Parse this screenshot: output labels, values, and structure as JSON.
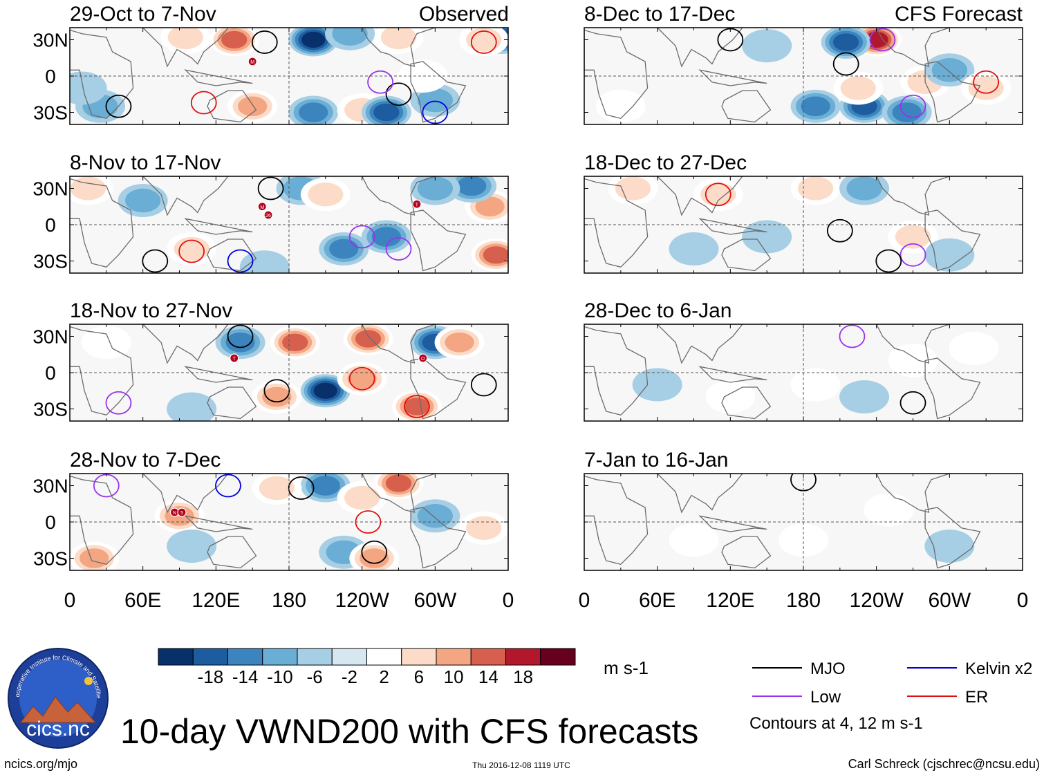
{
  "chart_data": {
    "type": "heatmap",
    "title": "10-day VWND200 with CFS forecasts",
    "variable": "VWND200",
    "units": "m s-1",
    "x_ticks": [
      "0",
      "60E",
      "120E",
      "180",
      "120W",
      "60W",
      "0"
    ],
    "y_ticks": [
      "30N",
      "0",
      "30S"
    ],
    "xlim": [
      0,
      360
    ],
    "ylim": [
      -40,
      40
    ],
    "column_labels": {
      "observed": "Observed",
      "forecast": "CFS Forecast"
    },
    "panels": [
      {
        "column": "observed",
        "period": "29-Oct to 7-Nov",
        "centers": [
          {
            "lon": 355,
            "lat": 32,
            "v": -16
          },
          {
            "lon": 200,
            "lat": 30,
            "v": -20
          },
          {
            "lon": 135,
            "lat": 30,
            "v": 18
          },
          {
            "lon": 270,
            "lat": 32,
            "v": 10
          },
          {
            "lon": 230,
            "lat": 35,
            "v": -10
          },
          {
            "lon": 200,
            "lat": -30,
            "v": -12
          },
          {
            "lon": 240,
            "lat": -28,
            "v": 10
          },
          {
            "lon": 260,
            "lat": -30,
            "v": -18
          },
          {
            "lon": 300,
            "lat": -20,
            "v": -10
          },
          {
            "lon": 340,
            "lat": 30,
            "v": 8
          },
          {
            "lon": 25,
            "lat": -25,
            "v": -10
          },
          {
            "lon": 150,
            "lat": -25,
            "v": 12
          },
          {
            "lon": 95,
            "lat": 32,
            "v": 10
          },
          {
            "lon": 10,
            "lat": -10,
            "v": -6
          },
          {
            "lon": 290,
            "lat": 0,
            "v": 6
          }
        ],
        "contours": [
          {
            "type": "mjo",
            "lon": 40,
            "lat": -25
          },
          {
            "type": "mjo",
            "lon": 160,
            "lat": 28
          },
          {
            "type": "mjo",
            "lon": 270,
            "lat": -15
          },
          {
            "type": "er",
            "lon": 110,
            "lat": -22
          },
          {
            "type": "er",
            "lon": 340,
            "lat": 28
          },
          {
            "type": "low",
            "lon": 255,
            "lat": -5
          },
          {
            "type": "kelvin",
            "lon": 300,
            "lat": -30
          }
        ],
        "markers": [
          {
            "lon": 150,
            "lat": 12,
            "label": "M"
          }
        ]
      },
      {
        "column": "observed",
        "period": "8-Nov to 17-Nov",
        "centers": [
          {
            "lon": 350,
            "lat": -25,
            "v": 16
          },
          {
            "lon": 345,
            "lat": 15,
            "v": 14
          },
          {
            "lon": 330,
            "lat": 32,
            "v": -12
          },
          {
            "lon": 225,
            "lat": -20,
            "v": -14
          },
          {
            "lon": 260,
            "lat": -10,
            "v": -12
          },
          {
            "lon": 300,
            "lat": 30,
            "v": -8
          },
          {
            "lon": 100,
            "lat": -20,
            "v": 10
          },
          {
            "lon": 60,
            "lat": 20,
            "v": -10
          },
          {
            "lon": 15,
            "lat": 30,
            "v": 10
          },
          {
            "lon": 190,
            "lat": 30,
            "v": -8
          },
          {
            "lon": 160,
            "lat": -35,
            "v": -6
          },
          {
            "lon": 210,
            "lat": 25,
            "v": 8
          }
        ],
        "contours": [
          {
            "type": "mjo",
            "lon": 165,
            "lat": 30
          },
          {
            "type": "mjo",
            "lon": 70,
            "lat": -30
          },
          {
            "type": "low",
            "lon": 270,
            "lat": -20
          },
          {
            "type": "er",
            "lon": 100,
            "lat": -22
          },
          {
            "type": "low",
            "lon": 240,
            "lat": -10
          },
          {
            "type": "kelvin",
            "lon": 140,
            "lat": -30
          }
        ],
        "markers": [
          {
            "lon": 158,
            "lat": 15,
            "label": "M"
          },
          {
            "lon": 163,
            "lat": 8,
            "label": "26"
          },
          {
            "lon": 285,
            "lat": 17,
            "label": "T"
          }
        ]
      },
      {
        "column": "observed",
        "period": "18-Nov to 27-Nov",
        "centers": [
          {
            "lon": 185,
            "lat": 25,
            "v": 18
          },
          {
            "lon": 170,
            "lat": -20,
            "v": 14
          },
          {
            "lon": 210,
            "lat": -15,
            "v": -20
          },
          {
            "lon": 240,
            "lat": -5,
            "v": 12
          },
          {
            "lon": 245,
            "lat": 28,
            "v": 16
          },
          {
            "lon": 285,
            "lat": -28,
            "v": 16
          },
          {
            "lon": 300,
            "lat": 25,
            "v": -16
          },
          {
            "lon": 320,
            "lat": 25,
            "v": 14
          },
          {
            "lon": 140,
            "lat": 25,
            "v": -12
          },
          {
            "lon": 100,
            "lat": -30,
            "v": -6
          },
          {
            "lon": 30,
            "lat": 25,
            "v": 6
          }
        ],
        "contours": [
          {
            "type": "mjo",
            "lon": 170,
            "lat": -15
          },
          {
            "type": "mjo",
            "lon": 140,
            "lat": 30
          },
          {
            "type": "er",
            "lon": 285,
            "lat": -28
          },
          {
            "type": "er",
            "lon": 240,
            "lat": -5
          },
          {
            "type": "low",
            "lon": 40,
            "lat": -25
          },
          {
            "type": "mjo",
            "lon": 340,
            "lat": -10
          }
        ],
        "markers": [
          {
            "lon": 135,
            "lat": 12,
            "label": "T"
          },
          {
            "lon": 290,
            "lat": 12,
            "label": "O"
          }
        ]
      },
      {
        "column": "observed",
        "period": "28-Nov to 7-Dec",
        "centers": [
          {
            "lon": 270,
            "lat": 32,
            "v": 18
          },
          {
            "lon": 210,
            "lat": 30,
            "v": -12
          },
          {
            "lon": 170,
            "lat": 28,
            "v": 10
          },
          {
            "lon": 240,
            "lat": 20,
            "v": 10
          },
          {
            "lon": 225,
            "lat": -25,
            "v": -10
          },
          {
            "lon": 250,
            "lat": -30,
            "v": 14
          },
          {
            "lon": 300,
            "lat": 5,
            "v": -8
          },
          {
            "lon": 90,
            "lat": 5,
            "v": 12
          },
          {
            "lon": 20,
            "lat": -30,
            "v": 12
          },
          {
            "lon": 100,
            "lat": -20,
            "v": -6
          },
          {
            "lon": 340,
            "lat": -5,
            "v": 10
          }
        ],
        "contours": [
          {
            "type": "mjo",
            "lon": 190,
            "lat": 28
          },
          {
            "type": "mjo",
            "lon": 250,
            "lat": -25
          },
          {
            "type": "er",
            "lon": 245,
            "lat": 0
          },
          {
            "type": "low",
            "lon": 30,
            "lat": 30
          },
          {
            "type": "kelvin",
            "lon": 130,
            "lat": 30
          }
        ],
        "markers": [
          {
            "lon": 86,
            "lat": 8,
            "label": "N"
          },
          {
            "lon": 92,
            "lat": 8,
            "label": "5"
          }
        ]
      },
      {
        "column": "forecast",
        "period": "8-Dec to 17-Dec",
        "centers": [
          {
            "lon": 240,
            "lat": 30,
            "v": 20
          },
          {
            "lon": 215,
            "lat": 28,
            "v": -18
          },
          {
            "lon": 190,
            "lat": -25,
            "v": -12
          },
          {
            "lon": 230,
            "lat": -25,
            "v": -16
          },
          {
            "lon": 265,
            "lat": -30,
            "v": -14
          },
          {
            "lon": 225,
            "lat": -10,
            "v": 10
          },
          {
            "lon": 280,
            "lat": -5,
            "v": 8
          },
          {
            "lon": 300,
            "lat": 5,
            "v": -8
          },
          {
            "lon": 330,
            "lat": -10,
            "v": 8
          },
          {
            "lon": 30,
            "lat": -25,
            "v": 6
          },
          {
            "lon": 150,
            "lat": 25,
            "v": -6
          }
        ],
        "contours": [
          {
            "type": "mjo",
            "lon": 215,
            "lat": 10
          },
          {
            "type": "mjo",
            "lon": 120,
            "lat": 30
          },
          {
            "type": "low",
            "lon": 270,
            "lat": -25
          },
          {
            "type": "er",
            "lon": 330,
            "lat": -5
          },
          {
            "type": "low",
            "lon": 245,
            "lat": 30
          }
        ],
        "markers": []
      },
      {
        "column": "forecast",
        "period": "18-Dec to 27-Dec",
        "centers": [
          {
            "lon": 270,
            "lat": -10,
            "v": 10
          },
          {
            "lon": 40,
            "lat": 30,
            "v": 10
          },
          {
            "lon": 110,
            "lat": 25,
            "v": 8
          },
          {
            "lon": 190,
            "lat": 30,
            "v": 8
          },
          {
            "lon": 230,
            "lat": 30,
            "v": -8
          },
          {
            "lon": 150,
            "lat": -10,
            "v": -6
          },
          {
            "lon": 300,
            "lat": -25,
            "v": -6
          },
          {
            "lon": 90,
            "lat": -20,
            "v": -6
          }
        ],
        "contours": [
          {
            "type": "mjo",
            "lon": 210,
            "lat": -5
          },
          {
            "type": "low",
            "lon": 270,
            "lat": -25
          },
          {
            "type": "er",
            "lon": 110,
            "lat": 25
          },
          {
            "type": "mjo",
            "lon": 250,
            "lat": -30
          }
        ],
        "markers": []
      },
      {
        "column": "forecast",
        "period": "28-Dec to 6-Jan",
        "centers": [
          {
            "lon": 120,
            "lat": -20,
            "v": 4
          },
          {
            "lon": 190,
            "lat": -10,
            "v": 4
          },
          {
            "lon": 270,
            "lat": 10,
            "v": 4
          },
          {
            "lon": 60,
            "lat": -10,
            "v": -4
          },
          {
            "lon": 230,
            "lat": -20,
            "v": -4
          },
          {
            "lon": 320,
            "lat": 20,
            "v": 4
          }
        ],
        "contours": [
          {
            "type": "mjo",
            "lon": 270,
            "lat": -25
          },
          {
            "type": "low",
            "lon": 220,
            "lat": 30
          }
        ],
        "markers": []
      },
      {
        "column": "forecast",
        "period": "7-Jan to 16-Jan",
        "centers": [
          {
            "lon": 90,
            "lat": -15,
            "v": 4
          },
          {
            "lon": 250,
            "lat": 10,
            "v": 4
          },
          {
            "lon": 300,
            "lat": -20,
            "v": -4
          },
          {
            "lon": 180,
            "lat": -15,
            "v": 4
          }
        ],
        "contours": [
          {
            "type": "mjo",
            "lon": 180,
            "lat": 35
          }
        ],
        "markers": []
      }
    ],
    "colorbar": {
      "levels": [
        -22,
        -18,
        -14,
        -10,
        -6,
        -2,
        2,
        6,
        10,
        14,
        18,
        22
      ],
      "tick_labels": [
        "-18",
        "-14",
        "-10",
        "-6",
        "-2",
        "2",
        "6",
        "10",
        "14",
        "18"
      ],
      "colors": [
        "#08306b",
        "#1e5ca0",
        "#3b84bd",
        "#6aadd5",
        "#a6cee4",
        "#d7e7f2",
        "#ffffff",
        "#fcdcc8",
        "#f4a582",
        "#d6604d",
        "#b2182b",
        "#67001f"
      ]
    },
    "legend": {
      "items": [
        {
          "label": "MJO",
          "color": "#000000"
        },
        {
          "label": "Kelvin x2",
          "color": "#0000dd"
        },
        {
          "label": "Low",
          "color": "#9a32ee"
        },
        {
          "label": "ER",
          "color": "#e01010"
        }
      ],
      "note": "Contours at 4, 12 m s-1"
    }
  },
  "logo": {
    "text": "cics.nc",
    "ring_text": "Cooperative Institute for Climate and Satellites"
  },
  "footer": {
    "left": "ncics.org/mjo",
    "center": "Thu 2016-12-08 1119 UTC",
    "right": "Carl Schreck (cjschrec@ncsu.edu)"
  }
}
